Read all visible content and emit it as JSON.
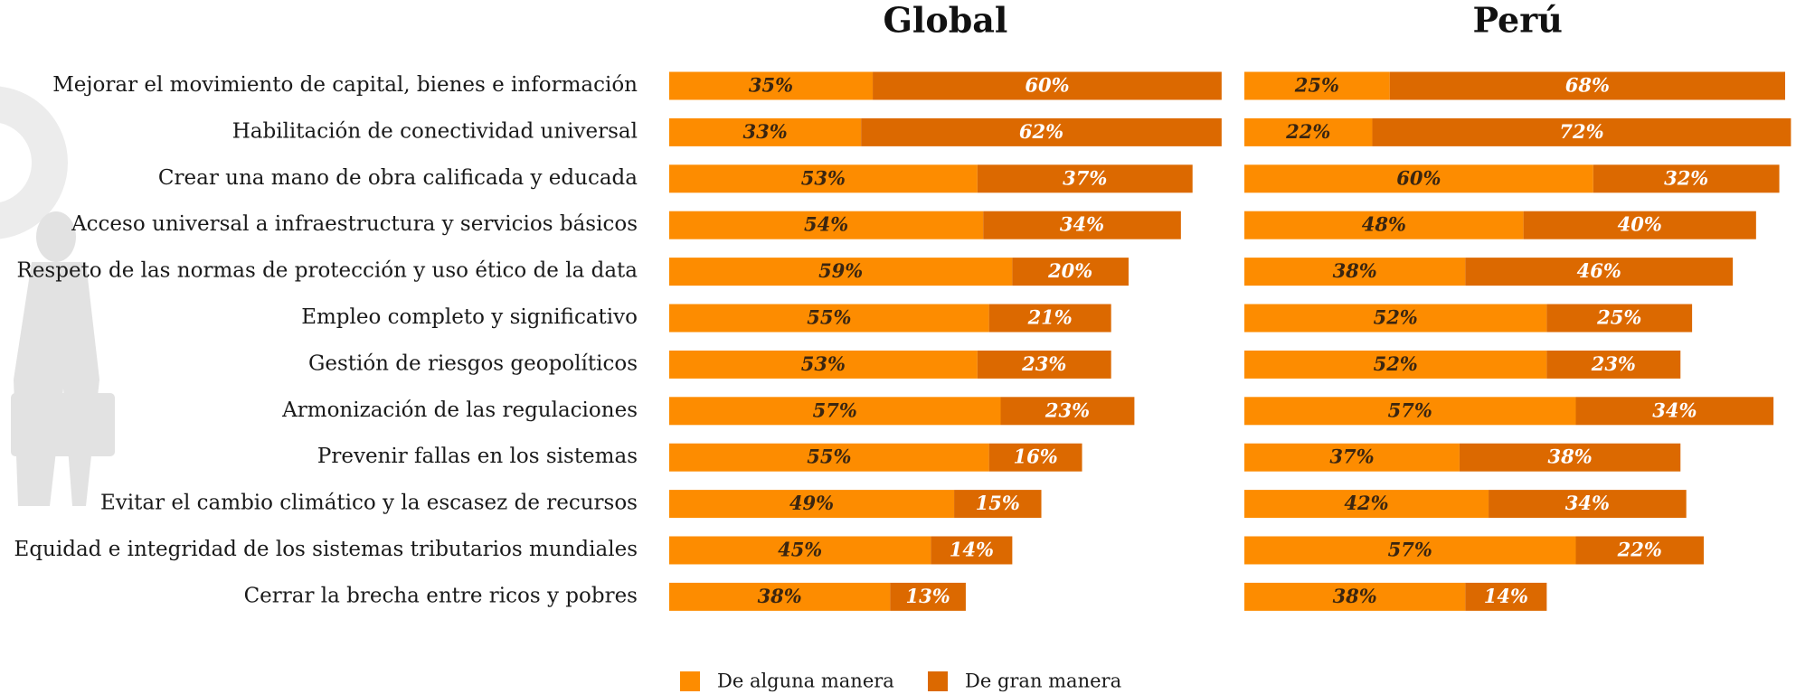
{
  "chart_data": [
    {
      "type": "bar",
      "stacked": true,
      "orientation": "horizontal",
      "title": "Global",
      "categories": [
        "Mejorar el movimiento de capital, bienes e información",
        "Habilitación de conectividad universal",
        "Crear una mano de obra calificada y educada",
        "Acceso universal a infraestructura y servicios básicos",
        "Respeto de las normas de protección y uso ético de la data",
        "Empleo completo y significativo",
        "Gestión de riesgos geopolíticos",
        "Armonización de las regulaciones",
        "Prevenir fallas en los sistemas",
        "Evitar el cambio climático y la escasez de recursos",
        "Equidad e integridad de los sistemas tributarios mundiales",
        "Cerrar la brecha entre ricos y pobres"
      ],
      "series": [
        {
          "name": "De alguna manera",
          "color": "#fd8c00",
          "label_color": "#3a2510",
          "values": [
            35,
            33,
            53,
            54,
            59,
            55,
            53,
            57,
            55,
            49,
            45,
            38
          ],
          "value_labels": [
            "35%",
            "33%",
            "53%",
            "54%",
            "59%",
            "55%",
            "53%",
            "57%",
            "55%",
            "49%",
            "45%",
            "38%"
          ]
        },
        {
          "name": "De gran manera",
          "color": "#dc6900",
          "label_color": "#ffffff",
          "values": [
            60,
            62,
            37,
            34,
            20,
            21,
            23,
            23,
            16,
            15,
            14,
            13
          ],
          "value_labels": [
            "60%",
            "62%",
            "37%",
            "34%",
            "20%",
            "21%",
            "23%",
            "23%",
            "16%",
            "15%",
            "14%",
            "13%"
          ]
        }
      ]
    },
    {
      "type": "bar",
      "stacked": true,
      "orientation": "horizontal",
      "title": "Perú",
      "series": [
        {
          "color": "#fd8c00",
          "label_color": "#3a2510",
          "values": [
            25,
            22,
            60,
            48,
            38,
            52,
            52,
            57,
            37,
            42,
            57,
            38
          ],
          "value_labels": [
            "25%",
            "22%",
            "60%",
            "48%",
            "38%",
            "52%",
            "52%",
            "57%",
            "37%",
            "42%",
            "57%",
            "38%"
          ]
        },
        {
          "color": "#dc6900",
          "label_color": "#ffffff",
          "values": [
            68,
            72,
            32,
            40,
            46,
            25,
            23,
            34,
            38,
            34,
            22,
            14
          ],
          "value_labels": [
            "68%",
            "72%",
            "32%",
            "40%",
            "46%",
            "25%",
            "23%",
            "34%",
            "38%",
            "34%",
            "22%",
            "14%"
          ]
        }
      ]
    }
  ]
}
